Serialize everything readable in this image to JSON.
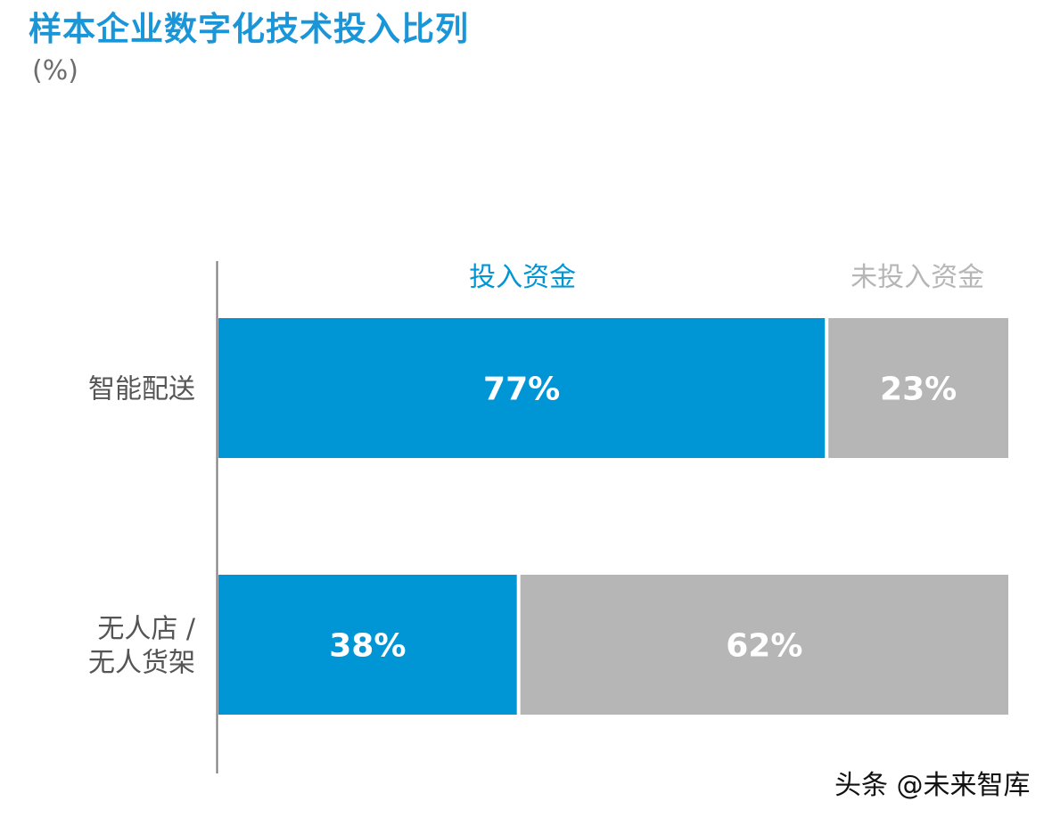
{
  "chart_data": {
    "type": "bar",
    "stacked": true,
    "orientation": "horizontal",
    "title": "样本企业数字化技术投入比列",
    "unit": "(%)",
    "categories": [
      [
        "智能配送"
      ],
      [
        "无人店 /",
        "无人货架"
      ]
    ],
    "series": [
      {
        "name": "投入资金",
        "color": "#0096d6",
        "label_color": "#0096d6",
        "values": [
          77,
          38
        ],
        "labels": [
          "77%",
          "38%"
        ]
      },
      {
        "name": "未投入资金",
        "color": "#b5b6b5",
        "label_color": "#b5b6b5",
        "values": [
          23,
          62
        ],
        "labels": [
          "23%",
          "62%"
        ]
      }
    ],
    "xlim": [
      0,
      100
    ],
    "legend_position": "top"
  },
  "watermark": "头条 @未来智库"
}
